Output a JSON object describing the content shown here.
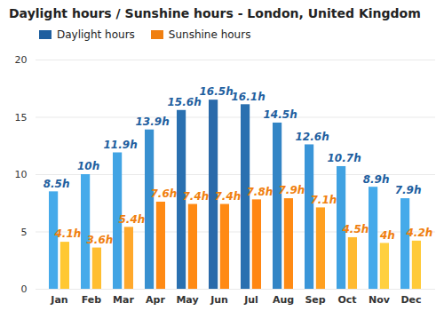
{
  "chart_data": {
    "type": "bar",
    "title": "Daylight hours / Sunshine hours - London, United Kingdom",
    "categories": [
      "Jan",
      "Feb",
      "Mar",
      "Apr",
      "May",
      "Jun",
      "Jul",
      "Aug",
      "Sep",
      "Oct",
      "Nov",
      "Dec"
    ],
    "series": [
      {
        "name": "Daylight hours",
        "color": "#1f5f9f",
        "colors": [
          "#45aaea",
          "#45aaea",
          "#42a4e4",
          "#3890d0",
          "#2a70b0",
          "#2a6aaa",
          "#2a70b0",
          "#3385c5",
          "#3a95d8",
          "#40a2e2",
          "#45aaea",
          "#45aaea"
        ],
        "values": [
          8.5,
          10,
          11.9,
          13.9,
          15.6,
          16.5,
          16.1,
          14.5,
          12.6,
          10.7,
          8.9,
          7.9
        ],
        "value_labels": [
          "8.5h",
          "10h",
          "11.9h",
          "13.9h",
          "15.6h",
          "16.5h",
          "16.1h",
          "14.5h",
          "12.6h",
          "10.7h",
          "8.9h",
          "7.9h"
        ]
      },
      {
        "name": "Sunshine hours",
        "color": "#f07f10",
        "colors": [
          "#ffc832",
          "#ffbe30",
          "#ffa82c",
          "#ff8a14",
          "#ff8a14",
          "#ff8a14",
          "#ff8612",
          "#ff8a14",
          "#ffa020",
          "#ffba30",
          "#ffd040",
          "#ffca38"
        ],
        "values": [
          4.1,
          3.6,
          5.4,
          7.6,
          7.4,
          7.4,
          7.8,
          7.9,
          7.1,
          4.5,
          4,
          4.2
        ],
        "value_labels": [
          "4.1h",
          "3.6h",
          "5.4h",
          "7.6h",
          "7.4h",
          "7.4h",
          "7.8h",
          "7.9h",
          "7.1h",
          "4.5h",
          "4h",
          "4.2h"
        ]
      }
    ],
    "ylim": [
      0,
      20
    ],
    "yticks": [
      0,
      5,
      10,
      15,
      20
    ],
    "grid": true,
    "legend": "top-left",
    "data_labels": true
  }
}
